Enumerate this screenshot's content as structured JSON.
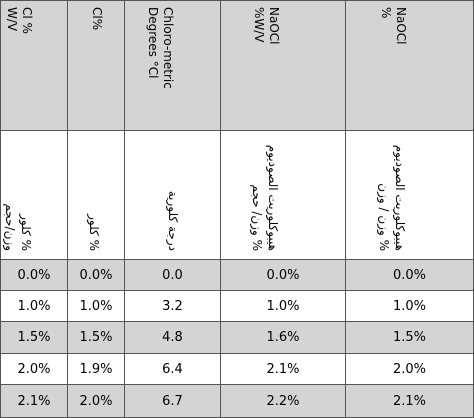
{
  "headers": [
    {
      "lines": [
        "Cl %",
        "W/V"
      ]
    },
    {
      "lines": [
        "Cl%"
      ]
    },
    {
      "lines": [
        "Chloro-metric",
        "Degrees °Cl"
      ]
    },
    {
      "lines": [
        "NaOCl",
        "%W/V"
      ]
    },
    {
      "lines": [
        "NaOCl",
        "%"
      ]
    }
  ],
  "arabic_headers": [
    {
      "lines": [
        "% كلور",
        "وزن/حجم"
      ]
    },
    {
      "lines": [
        "% كلور"
      ]
    },
    {
      "lines": [
        "درجة كلورية"
      ]
    },
    {
      "lines": [
        "هيبوكلوريت الصوديوم",
        "% وزن/ حجم"
      ]
    },
    {
      "lines": [
        "هيبوكلوريت الصوديوم",
        "% وزن / وزن"
      ]
    }
  ],
  "rows": [
    [
      "0.0%",
      "0.0%",
      "0.0",
      "0.0%",
      "0.0%"
    ],
    [
      "1.0%",
      "1.0%",
      "3.2",
      "1.0%",
      "1.0%"
    ],
    [
      "1.5%",
      "1.5%",
      "4.8",
      "1.6%",
      "1.5%"
    ],
    [
      "2.0%",
      "1.9%",
      "6.4",
      "2.1%",
      "2.0%"
    ],
    [
      "2.1%",
      "2.0%",
      "6.7",
      "2.2%",
      "2.1%"
    ]
  ]
}
